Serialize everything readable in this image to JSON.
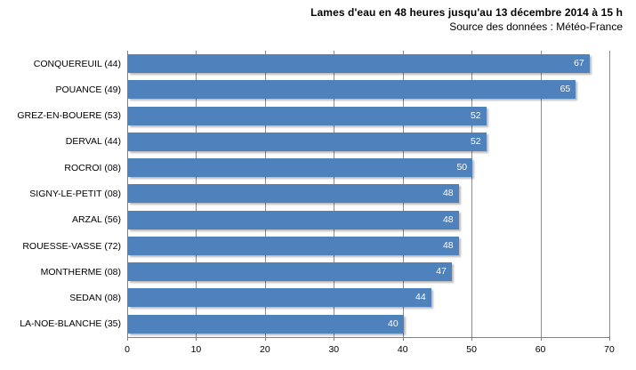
{
  "chart_data": {
    "type": "bar",
    "orientation": "horizontal",
    "title": "Lames d'eau en 48 heures jusqu'au 13 décembre 2014 à 15 h",
    "source_note": "Source des données : Météo-France",
    "categories": [
      "CONQUEREUIL (44)",
      "POUANCE (49)",
      "GREZ-EN-BOUERE (53)",
      "DERVAL (44)",
      "ROCROI (08)",
      "SIGNY-LE-PETIT (08)",
      "ARZAL (56)",
      "ROUESSE-VASSE (72)",
      "MONTHERME (08)",
      "SEDAN (08)",
      "LA-NOE-BLANCHE (35)"
    ],
    "values": [
      67,
      65,
      52,
      52,
      50,
      48,
      48,
      48,
      47,
      44,
      40
    ],
    "xlabel": "",
    "ylabel": "",
    "xlim": [
      0,
      70
    ],
    "xticks": [
      0,
      10,
      20,
      30,
      40,
      50,
      60,
      70
    ],
    "grid": true,
    "legend": false,
    "colors": {
      "bar": "#4F81BD",
      "gridline": "#8C8C8C",
      "axis": "#808080",
      "value_label": "#FFFFFF",
      "text": "#000000"
    }
  }
}
